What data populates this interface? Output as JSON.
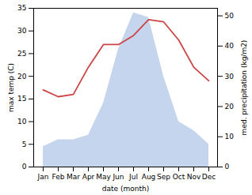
{
  "chart_data": {
    "type": "line",
    "categories": [
      "Jan",
      "Feb",
      "Mar",
      "Apr",
      "May",
      "Jun",
      "Jul",
      "Aug",
      "Sep",
      "Oct",
      "Nov",
      "Dec"
    ],
    "series": [
      {
        "type": "area",
        "axis": "y2",
        "color": "#c5d5ee",
        "values": [
          6.75,
          9,
          9,
          10.5,
          21,
          39,
          51,
          49.5,
          30,
          15,
          12,
          7.5
        ]
      },
      {
        "type": "line",
        "color": "#cc4444",
        "values": [
          17,
          15.5,
          16,
          22,
          27,
          27,
          29,
          32.5,
          32,
          28,
          22,
          19
        ]
      }
    ],
    "xlabel": "date (month)",
    "ylabel": "max temp (C)",
    "y2label": "med. precipitation (kg/m2)",
    "ylim": [
      0,
      35
    ],
    "yticks": [
      0,
      5,
      10,
      15,
      20,
      25,
      30,
      35
    ],
    "y2lim": [
      0,
      52.5
    ],
    "y2ticks": [
      0,
      10,
      20,
      30,
      40,
      50
    ]
  }
}
